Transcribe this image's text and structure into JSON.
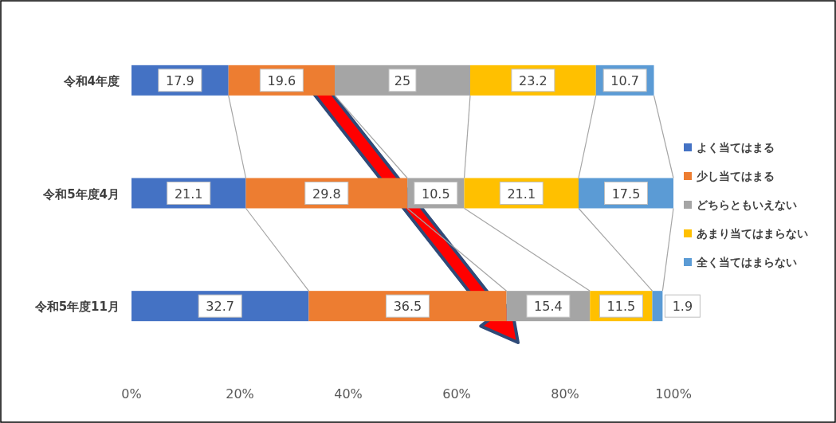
{
  "chart_data": {
    "type": "bar",
    "orientation": "horizontal",
    "stacked": true,
    "categories": [
      "令和4年度",
      "令和5年度4月",
      "令和5年度11月"
    ],
    "series": [
      {
        "name": "よく当てはまる",
        "color": "#4472c4",
        "values": [
          17.9,
          21.1,
          32.7
        ],
        "value_labels": [
          "17.9",
          "21.1",
          "32.7"
        ]
      },
      {
        "name": "少し当てはまる",
        "color": "#ed7d31",
        "values": [
          19.6,
          29.8,
          36.5
        ],
        "value_labels": [
          "19.6",
          "29.8",
          "36.5"
        ]
      },
      {
        "name": "どちらともいえない",
        "color": "#a5a5a5",
        "values": [
          25,
          10.5,
          15.4
        ],
        "value_labels": [
          "25",
          "10.5",
          "15.4"
        ]
      },
      {
        "name": "あまり当てはまらない",
        "color": "#ffc000",
        "values": [
          23.2,
          21.1,
          11.5
        ],
        "value_labels": [
          "23.2",
          "21.1",
          "11.5"
        ]
      },
      {
        "name": "全く当てはまらない",
        "color": "#5b9bd5",
        "values": [
          10.7,
          17.5,
          1.9
        ],
        "value_labels": [
          "10.7",
          "17.5",
          "1.9"
        ]
      }
    ],
    "xlim": [
      0,
      100
    ],
    "xticks": [
      {
        "value": 0,
        "label": "0%"
      },
      {
        "value": 20,
        "label": "20%"
      },
      {
        "value": 40,
        "label": "40%"
      },
      {
        "value": 60,
        "label": "60%"
      },
      {
        "value": 80,
        "label": "80%"
      },
      {
        "value": 100,
        "label": "100%"
      }
    ],
    "legend": "right"
  }
}
